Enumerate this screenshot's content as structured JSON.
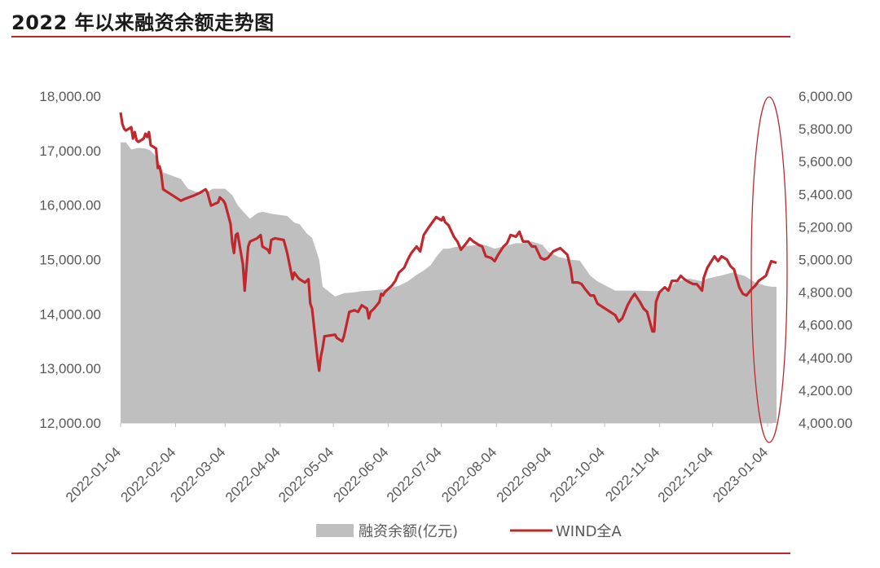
{
  "title": "2022 年以来融资余额走势图",
  "colors": {
    "area": "#bfbfbf",
    "line": "#c0282d",
    "rule": "#c0282d",
    "text": "#595959"
  },
  "chart_data": {
    "type": "area+line",
    "title": "2022 年以来融资余额走势图",
    "x_ticks": [
      "2022-01-04",
      "2022-02-04",
      "2022-03-04",
      "2022-04-04",
      "2022-05-04",
      "2022-06-04",
      "2022-07-04",
      "2022-08-04",
      "2022-09-04",
      "2022-10-04",
      "2022-11-04",
      "2022-12-04",
      "2023-01-04"
    ],
    "y_left": {
      "range": [
        12000,
        18000
      ],
      "ticks": [
        "12,000.00",
        "13,000.00",
        "14,000.00",
        "15,000.00",
        "16,000.00",
        "17,000.00",
        "18,000.00"
      ]
    },
    "y_right": {
      "range": [
        4000,
        6000
      ],
      "ticks": [
        "4,000.00",
        "4,200.00",
        "4,400.00",
        "4,600.00",
        "4,800.00",
        "5,000.00",
        "5,200.00",
        "5,400.00",
        "5,600.00",
        "5,800.00",
        "6,000.00"
      ]
    },
    "legend_position": "bottom",
    "series": [
      {
        "name": "融资余额(亿元)",
        "type": "area",
        "axis": "left",
        "points": [
          [
            "2022-01-04",
            17150
          ],
          [
            "2022-01-07",
            17150
          ],
          [
            "2022-01-10",
            17020
          ],
          [
            "2022-01-14",
            17050
          ],
          [
            "2022-01-18",
            17040
          ],
          [
            "2022-01-21",
            17000
          ],
          [
            "2022-01-25",
            16850
          ],
          [
            "2022-01-28",
            16600
          ],
          [
            "2022-02-07",
            16480
          ],
          [
            "2022-02-11",
            16300
          ],
          [
            "2022-02-15",
            16250
          ],
          [
            "2022-02-18",
            16230
          ],
          [
            "2022-02-22",
            16240
          ],
          [
            "2022-02-25",
            16300
          ],
          [
            "2022-03-01",
            16300
          ],
          [
            "2022-03-04",
            16300
          ],
          [
            "2022-03-08",
            16180
          ],
          [
            "2022-03-11",
            16000
          ],
          [
            "2022-03-15",
            15850
          ],
          [
            "2022-03-18",
            15750
          ],
          [
            "2022-03-22",
            15850
          ],
          [
            "2022-03-25",
            15880
          ],
          [
            "2022-03-29",
            15850
          ],
          [
            "2022-04-01",
            15830
          ],
          [
            "2022-04-08",
            15800
          ],
          [
            "2022-04-12",
            15680
          ],
          [
            "2022-04-15",
            15650
          ],
          [
            "2022-04-19",
            15480
          ],
          [
            "2022-04-22",
            15400
          ],
          [
            "2022-04-26",
            15000
          ],
          [
            "2022-04-28",
            14500
          ],
          [
            "2022-05-05",
            14320
          ],
          [
            "2022-05-10",
            14380
          ],
          [
            "2022-05-16",
            14400
          ],
          [
            "2022-05-20",
            14420
          ],
          [
            "2022-05-25",
            14430
          ],
          [
            "2022-05-31",
            14450
          ],
          [
            "2022-06-02",
            14450
          ],
          [
            "2022-06-10",
            14520
          ],
          [
            "2022-06-15",
            14600
          ],
          [
            "2022-06-20",
            14720
          ],
          [
            "2022-06-24",
            14800
          ],
          [
            "2022-06-28",
            14900
          ],
          [
            "2022-07-01",
            15050
          ],
          [
            "2022-07-05",
            15200
          ],
          [
            "2022-07-08",
            15200
          ],
          [
            "2022-07-12",
            15230
          ],
          [
            "2022-07-18",
            15250
          ],
          [
            "2022-07-22",
            15260
          ],
          [
            "2022-07-26",
            15280
          ],
          [
            "2022-07-29",
            15260
          ],
          [
            "2022-08-03",
            15200
          ],
          [
            "2022-08-09",
            15250
          ],
          [
            "2022-08-15",
            15300
          ],
          [
            "2022-08-19",
            15300
          ],
          [
            "2022-08-24",
            15330
          ],
          [
            "2022-08-30",
            15270
          ],
          [
            "2022-09-02",
            15150
          ],
          [
            "2022-09-08",
            15050
          ],
          [
            "2022-09-14",
            15000
          ],
          [
            "2022-09-20",
            14980
          ],
          [
            "2022-09-26",
            14700
          ],
          [
            "2022-09-30",
            14600
          ],
          [
            "2022-10-10",
            14430
          ],
          [
            "2022-10-17",
            14430
          ],
          [
            "2022-10-24",
            14430
          ],
          [
            "2022-10-31",
            14420
          ],
          [
            "2022-11-07",
            14430
          ],
          [
            "2022-11-14",
            14600
          ],
          [
            "2022-11-21",
            14650
          ],
          [
            "2022-11-28",
            14600
          ],
          [
            "2022-12-01",
            14650
          ],
          [
            "2022-12-08",
            14700
          ],
          [
            "2022-12-15",
            14760
          ],
          [
            "2022-12-22",
            14700
          ],
          [
            "2022-12-28",
            14580
          ],
          [
            "2023-01-03",
            14520
          ],
          [
            "2023-01-06",
            14500
          ],
          [
            "2023-01-09",
            14500
          ]
        ]
      },
      {
        "name": "WIND全A",
        "type": "line",
        "axis": "right",
        "points": [
          [
            "2022-01-04",
            5900
          ],
          [
            "2022-01-05",
            5830
          ],
          [
            "2022-01-06",
            5800
          ],
          [
            "2022-01-07",
            5790
          ],
          [
            "2022-01-10",
            5810
          ],
          [
            "2022-01-11",
            5740
          ],
          [
            "2022-01-12",
            5780
          ],
          [
            "2022-01-13",
            5730
          ],
          [
            "2022-01-14",
            5720
          ],
          [
            "2022-01-17",
            5740
          ],
          [
            "2022-01-18",
            5770
          ],
          [
            "2022-01-19",
            5750
          ],
          [
            "2022-01-20",
            5780
          ],
          [
            "2022-01-21",
            5700
          ],
          [
            "2022-01-24",
            5680
          ],
          [
            "2022-01-25",
            5560
          ],
          [
            "2022-01-26",
            5570
          ],
          [
            "2022-01-27",
            5520
          ],
          [
            "2022-01-28",
            5430
          ],
          [
            "2022-02-07",
            5360
          ],
          [
            "2022-02-09",
            5370
          ],
          [
            "2022-02-14",
            5390
          ],
          [
            "2022-02-18",
            5410
          ],
          [
            "2022-02-21",
            5430
          ],
          [
            "2022-02-22",
            5410
          ],
          [
            "2022-02-24",
            5330
          ],
          [
            "2022-02-28",
            5350
          ],
          [
            "2022-03-01",
            5380
          ],
          [
            "2022-03-03",
            5360
          ],
          [
            "2022-03-04",
            5340
          ],
          [
            "2022-03-07",
            5220
          ],
          [
            "2022-03-08",
            5100
          ],
          [
            "2022-03-09",
            5040
          ],
          [
            "2022-03-10",
            5150
          ],
          [
            "2022-03-11",
            5160
          ],
          [
            "2022-03-14",
            4970
          ],
          [
            "2022-03-15",
            4810
          ],
          [
            "2022-03-16",
            4950
          ],
          [
            "2022-03-17",
            5080
          ],
          [
            "2022-03-18",
            5110
          ],
          [
            "2022-03-22",
            5130
          ],
          [
            "2022-03-24",
            5150
          ],
          [
            "2022-03-25",
            5080
          ],
          [
            "2022-03-28",
            5060
          ],
          [
            "2022-03-29",
            5040
          ],
          [
            "2022-03-30",
            5120
          ],
          [
            "2022-04-01",
            5130
          ],
          [
            "2022-04-06",
            5120
          ],
          [
            "2022-04-08",
            5040
          ],
          [
            "2022-04-11",
            4880
          ],
          [
            "2022-04-12",
            4920
          ],
          [
            "2022-04-14",
            4890
          ],
          [
            "2022-04-15",
            4880
          ],
          [
            "2022-04-18",
            4860
          ],
          [
            "2022-04-20",
            4880
          ],
          [
            "2022-04-21",
            4730
          ],
          [
            "2022-04-22",
            4700
          ],
          [
            "2022-04-25",
            4400
          ],
          [
            "2022-04-26",
            4320
          ],
          [
            "2022-04-27",
            4410
          ],
          [
            "2022-04-28",
            4460
          ],
          [
            "2022-04-29",
            4530
          ],
          [
            "2022-05-05",
            4540
          ],
          [
            "2022-05-06",
            4520
          ],
          [
            "2022-05-09",
            4500
          ],
          [
            "2022-05-10",
            4530
          ],
          [
            "2022-05-11",
            4580
          ],
          [
            "2022-05-13",
            4680
          ],
          [
            "2022-05-16",
            4690
          ],
          [
            "2022-05-18",
            4680
          ],
          [
            "2022-05-20",
            4720
          ],
          [
            "2022-05-23",
            4700
          ],
          [
            "2022-05-24",
            4640
          ],
          [
            "2022-05-25",
            4680
          ],
          [
            "2022-05-27",
            4700
          ],
          [
            "2022-05-30",
            4740
          ],
          [
            "2022-05-31",
            4790
          ],
          [
            "2022-06-01",
            4780
          ],
          [
            "2022-06-02",
            4800
          ],
          [
            "2022-06-06",
            4840
          ],
          [
            "2022-06-08",
            4870
          ],
          [
            "2022-06-10",
            4920
          ],
          [
            "2022-06-13",
            4950
          ],
          [
            "2022-06-15",
            5000
          ],
          [
            "2022-06-17",
            5040
          ],
          [
            "2022-06-20",
            5080
          ],
          [
            "2022-06-22",
            5050
          ],
          [
            "2022-06-24",
            5150
          ],
          [
            "2022-06-27",
            5200
          ],
          [
            "2022-06-29",
            5230
          ],
          [
            "2022-07-01",
            5260
          ],
          [
            "2022-07-04",
            5240
          ],
          [
            "2022-07-05",
            5260
          ],
          [
            "2022-07-06",
            5230
          ],
          [
            "2022-07-08",
            5210
          ],
          [
            "2022-07-11",
            5140
          ],
          [
            "2022-07-13",
            5110
          ],
          [
            "2022-07-15",
            5060
          ],
          [
            "2022-07-18",
            5100
          ],
          [
            "2022-07-20",
            5130
          ],
          [
            "2022-07-22",
            5110
          ],
          [
            "2022-07-25",
            5090
          ],
          [
            "2022-07-27",
            5080
          ],
          [
            "2022-07-29",
            5020
          ],
          [
            "2022-08-01",
            5010
          ],
          [
            "2022-08-03",
            4990
          ],
          [
            "2022-08-05",
            5030
          ],
          [
            "2022-08-08",
            5080
          ],
          [
            "2022-08-10",
            5100
          ],
          [
            "2022-08-12",
            5150
          ],
          [
            "2022-08-15",
            5140
          ],
          [
            "2022-08-17",
            5170
          ],
          [
            "2022-08-19",
            5110
          ],
          [
            "2022-08-22",
            5110
          ],
          [
            "2022-08-24",
            5080
          ],
          [
            "2022-08-26",
            5080
          ],
          [
            "2022-08-29",
            5010
          ],
          [
            "2022-08-31",
            5000
          ],
          [
            "2022-09-02",
            5010
          ],
          [
            "2022-09-05",
            5050
          ],
          [
            "2022-09-07",
            5060
          ],
          [
            "2022-09-09",
            5070
          ],
          [
            "2022-09-13",
            5030
          ],
          [
            "2022-09-15",
            4940
          ],
          [
            "2022-09-16",
            4860
          ],
          [
            "2022-09-19",
            4860
          ],
          [
            "2022-09-21",
            4850
          ],
          [
            "2022-09-23",
            4820
          ],
          [
            "2022-09-26",
            4780
          ],
          [
            "2022-09-28",
            4780
          ],
          [
            "2022-09-30",
            4730
          ],
          [
            "2022-10-10",
            4660
          ],
          [
            "2022-10-12",
            4620
          ],
          [
            "2022-10-14",
            4640
          ],
          [
            "2022-10-17",
            4720
          ],
          [
            "2022-10-19",
            4760
          ],
          [
            "2022-10-21",
            4790
          ],
          [
            "2022-10-24",
            4740
          ],
          [
            "2022-10-26",
            4700
          ],
          [
            "2022-10-28",
            4680
          ],
          [
            "2022-10-31",
            4560
          ],
          [
            "2022-11-01",
            4560
          ],
          [
            "2022-11-02",
            4740
          ],
          [
            "2022-11-04",
            4800
          ],
          [
            "2022-11-07",
            4830
          ],
          [
            "2022-11-09",
            4810
          ],
          [
            "2022-11-11",
            4870
          ],
          [
            "2022-11-14",
            4870
          ],
          [
            "2022-11-16",
            4900
          ],
          [
            "2022-11-18",
            4880
          ],
          [
            "2022-11-21",
            4860
          ],
          [
            "2022-11-23",
            4850
          ],
          [
            "2022-11-25",
            4850
          ],
          [
            "2022-11-28",
            4810
          ],
          [
            "2022-11-29",
            4890
          ],
          [
            "2022-12-01",
            4950
          ],
          [
            "2022-12-05",
            5020
          ],
          [
            "2022-12-07",
            4990
          ],
          [
            "2022-12-09",
            5020
          ],
          [
            "2022-12-12",
            5000
          ],
          [
            "2022-12-14",
            4960
          ],
          [
            "2022-12-16",
            4940
          ],
          [
            "2022-12-19",
            4830
          ],
          [
            "2022-12-21",
            4790
          ],
          [
            "2022-12-23",
            4780
          ],
          [
            "2022-12-26",
            4820
          ],
          [
            "2022-12-28",
            4840
          ],
          [
            "2022-12-30",
            4870
          ],
          [
            "2023-01-03",
            4900
          ],
          [
            "2023-01-05",
            4960
          ],
          [
            "2023-01-06",
            4990
          ],
          [
            "2023-01-09",
            4980
          ]
        ]
      }
    ]
  }
}
